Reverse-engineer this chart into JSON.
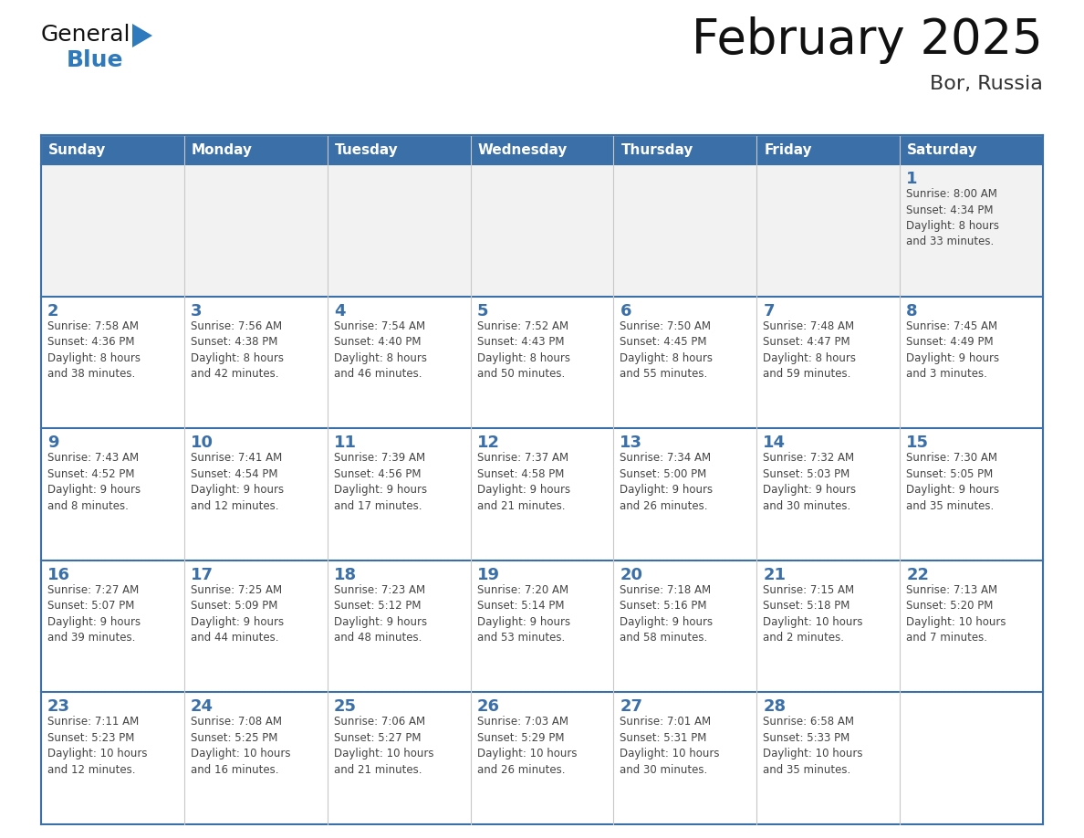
{
  "title": "February 2025",
  "subtitle": "Bor, Russia",
  "days_of_week": [
    "Sunday",
    "Monday",
    "Tuesday",
    "Wednesday",
    "Thursday",
    "Friday",
    "Saturday"
  ],
  "header_bg": "#3a6fa8",
  "header_text": "#FFFFFF",
  "cell_bg_white": "#FFFFFF",
  "cell_bg_gray": "#f2f2f2",
  "cell_border_light": "#c8c8c8",
  "cell_border_dark": "#3a6fa8",
  "day_num_color": "#3a6fa8",
  "info_text_color": "#444444",
  "title_color": "#111111",
  "subtitle_color": "#333333",
  "logo_general_color": "#111111",
  "logo_blue_color": "#2E7ABD",
  "triangle_color": "#2E7ABD",
  "weeks": [
    [
      {
        "day": null,
        "info": ""
      },
      {
        "day": null,
        "info": ""
      },
      {
        "day": null,
        "info": ""
      },
      {
        "day": null,
        "info": ""
      },
      {
        "day": null,
        "info": ""
      },
      {
        "day": null,
        "info": ""
      },
      {
        "day": 1,
        "info": "Sunrise: 8:00 AM\nSunset: 4:34 PM\nDaylight: 8 hours\nand 33 minutes."
      }
    ],
    [
      {
        "day": 2,
        "info": "Sunrise: 7:58 AM\nSunset: 4:36 PM\nDaylight: 8 hours\nand 38 minutes."
      },
      {
        "day": 3,
        "info": "Sunrise: 7:56 AM\nSunset: 4:38 PM\nDaylight: 8 hours\nand 42 minutes."
      },
      {
        "day": 4,
        "info": "Sunrise: 7:54 AM\nSunset: 4:40 PM\nDaylight: 8 hours\nand 46 minutes."
      },
      {
        "day": 5,
        "info": "Sunrise: 7:52 AM\nSunset: 4:43 PM\nDaylight: 8 hours\nand 50 minutes."
      },
      {
        "day": 6,
        "info": "Sunrise: 7:50 AM\nSunset: 4:45 PM\nDaylight: 8 hours\nand 55 minutes."
      },
      {
        "day": 7,
        "info": "Sunrise: 7:48 AM\nSunset: 4:47 PM\nDaylight: 8 hours\nand 59 minutes."
      },
      {
        "day": 8,
        "info": "Sunrise: 7:45 AM\nSunset: 4:49 PM\nDaylight: 9 hours\nand 3 minutes."
      }
    ],
    [
      {
        "day": 9,
        "info": "Sunrise: 7:43 AM\nSunset: 4:52 PM\nDaylight: 9 hours\nand 8 minutes."
      },
      {
        "day": 10,
        "info": "Sunrise: 7:41 AM\nSunset: 4:54 PM\nDaylight: 9 hours\nand 12 minutes."
      },
      {
        "day": 11,
        "info": "Sunrise: 7:39 AM\nSunset: 4:56 PM\nDaylight: 9 hours\nand 17 minutes."
      },
      {
        "day": 12,
        "info": "Sunrise: 7:37 AM\nSunset: 4:58 PM\nDaylight: 9 hours\nand 21 minutes."
      },
      {
        "day": 13,
        "info": "Sunrise: 7:34 AM\nSunset: 5:00 PM\nDaylight: 9 hours\nand 26 minutes."
      },
      {
        "day": 14,
        "info": "Sunrise: 7:32 AM\nSunset: 5:03 PM\nDaylight: 9 hours\nand 30 minutes."
      },
      {
        "day": 15,
        "info": "Sunrise: 7:30 AM\nSunset: 5:05 PM\nDaylight: 9 hours\nand 35 minutes."
      }
    ],
    [
      {
        "day": 16,
        "info": "Sunrise: 7:27 AM\nSunset: 5:07 PM\nDaylight: 9 hours\nand 39 minutes."
      },
      {
        "day": 17,
        "info": "Sunrise: 7:25 AM\nSunset: 5:09 PM\nDaylight: 9 hours\nand 44 minutes."
      },
      {
        "day": 18,
        "info": "Sunrise: 7:23 AM\nSunset: 5:12 PM\nDaylight: 9 hours\nand 48 minutes."
      },
      {
        "day": 19,
        "info": "Sunrise: 7:20 AM\nSunset: 5:14 PM\nDaylight: 9 hours\nand 53 minutes."
      },
      {
        "day": 20,
        "info": "Sunrise: 7:18 AM\nSunset: 5:16 PM\nDaylight: 9 hours\nand 58 minutes."
      },
      {
        "day": 21,
        "info": "Sunrise: 7:15 AM\nSunset: 5:18 PM\nDaylight: 10 hours\nand 2 minutes."
      },
      {
        "day": 22,
        "info": "Sunrise: 7:13 AM\nSunset: 5:20 PM\nDaylight: 10 hours\nand 7 minutes."
      }
    ],
    [
      {
        "day": 23,
        "info": "Sunrise: 7:11 AM\nSunset: 5:23 PM\nDaylight: 10 hours\nand 12 minutes."
      },
      {
        "day": 24,
        "info": "Sunrise: 7:08 AM\nSunset: 5:25 PM\nDaylight: 10 hours\nand 16 minutes."
      },
      {
        "day": 25,
        "info": "Sunrise: 7:06 AM\nSunset: 5:27 PM\nDaylight: 10 hours\nand 21 minutes."
      },
      {
        "day": 26,
        "info": "Sunrise: 7:03 AM\nSunset: 5:29 PM\nDaylight: 10 hours\nand 26 minutes."
      },
      {
        "day": 27,
        "info": "Sunrise: 7:01 AM\nSunset: 5:31 PM\nDaylight: 10 hours\nand 30 minutes."
      },
      {
        "day": 28,
        "info": "Sunrise: 6:58 AM\nSunset: 5:33 PM\nDaylight: 10 hours\nand 35 minutes."
      },
      {
        "day": null,
        "info": ""
      }
    ]
  ]
}
